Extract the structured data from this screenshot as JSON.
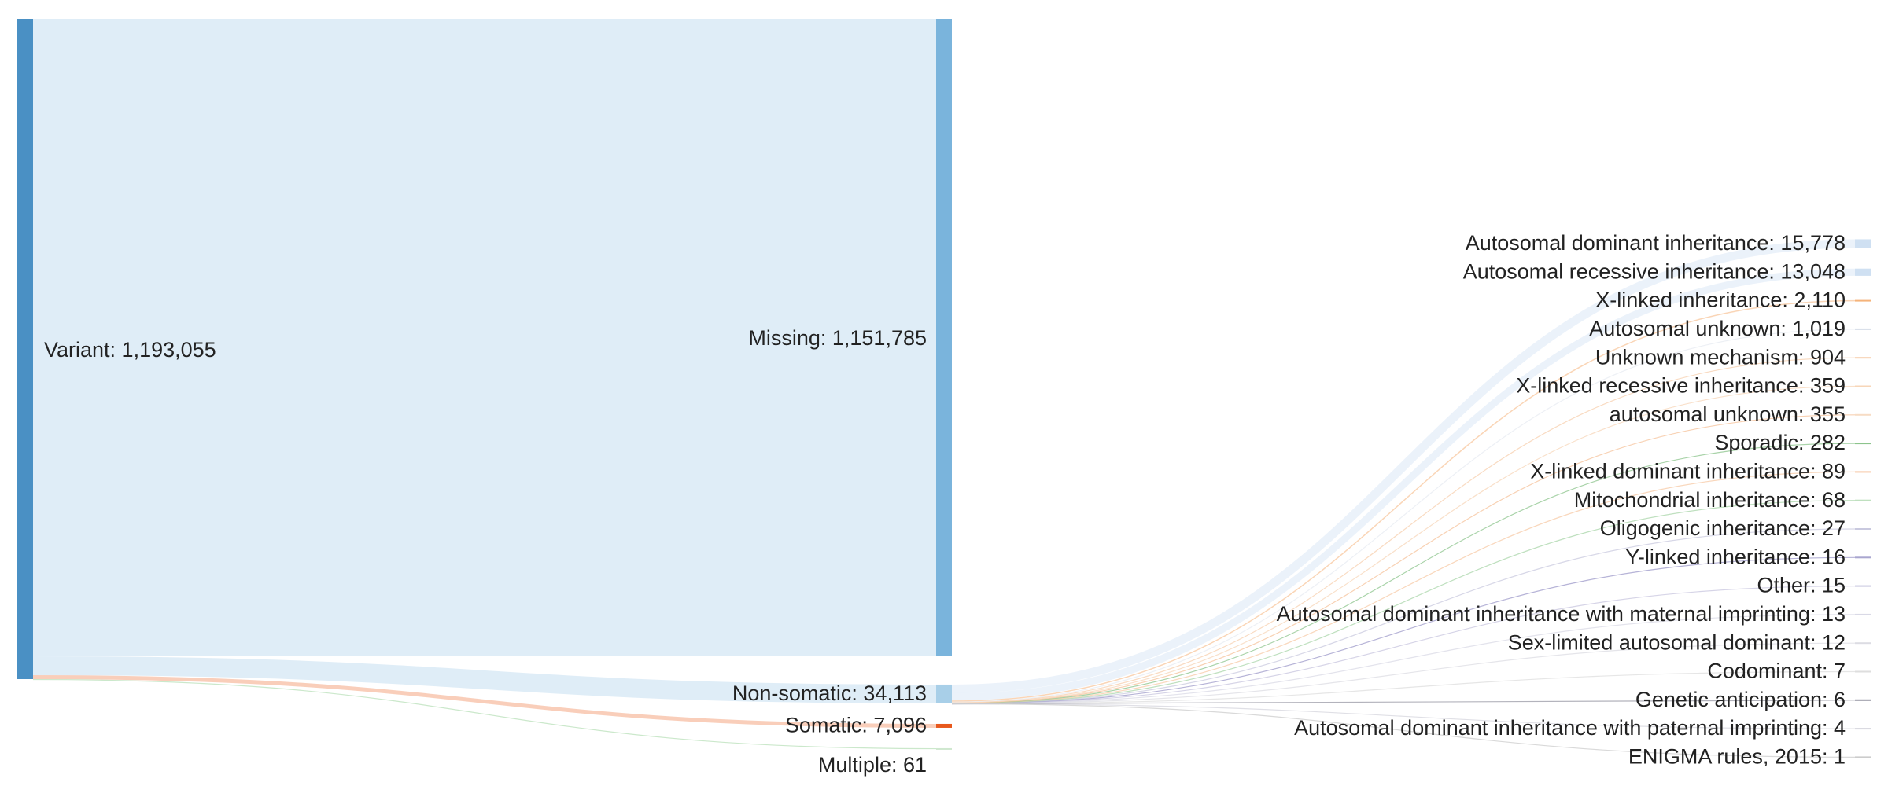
{
  "chart_data": {
    "type": "sankey",
    "title": "",
    "nodes": [
      {
        "id": "variant",
        "label": "Variant",
        "value": 1193055,
        "value_text": "1,193,055",
        "column": 0,
        "color": "#4a90c4"
      },
      {
        "id": "missing",
        "label": "Missing",
        "value": 1151785,
        "value_text": "1,151,785",
        "column": 1,
        "color": "#7ab4dc"
      },
      {
        "id": "nonsomatic",
        "label": "Non-somatic",
        "value": 34113,
        "value_text": "34,113",
        "column": 1,
        "color": "#a8cfe8"
      },
      {
        "id": "somatic",
        "label": "Somatic",
        "value": 7096,
        "value_text": "7,096",
        "column": 1,
        "color": "#e8581c"
      },
      {
        "id": "multiple",
        "label": "Multiple",
        "value": 61,
        "value_text": "61",
        "column": 1,
        "color": "#cfe8cf"
      },
      {
        "id": "ad",
        "label": "Autosomal dominant inheritance",
        "value": 15778,
        "value_text": "15,778",
        "column": 2,
        "color": "#cfe0f2"
      },
      {
        "id": "ar",
        "label": "Autosomal recessive inheritance",
        "value": 13048,
        "value_text": "13,048",
        "column": 2,
        "color": "#cfe0f2"
      },
      {
        "id": "xl",
        "label": "X-linked inheritance",
        "value": 2110,
        "value_text": "2,110",
        "column": 2,
        "color": "#f5b37a"
      },
      {
        "id": "au",
        "label": "Autosomal unknown",
        "value": 1019,
        "value_text": "1,019",
        "column": 2,
        "color": "#d6dde8"
      },
      {
        "id": "um",
        "label": "Unknown mechanism",
        "value": 904,
        "value_text": "904",
        "column": 2,
        "color": "#f7cfae"
      },
      {
        "id": "xlr",
        "label": "X-linked recessive inheritance",
        "value": 359,
        "value_text": "359",
        "column": 2,
        "color": "#f7d6b8"
      },
      {
        "id": "au2",
        "label": "autosomal unknown",
        "value": 355,
        "value_text": "355",
        "column": 2,
        "color": "#f7dcc4"
      },
      {
        "id": "sp",
        "label": "Sporadic",
        "value": 282,
        "value_text": "282",
        "column": 2,
        "color": "#8cc48c"
      },
      {
        "id": "xld",
        "label": "X-linked dominant inheritance",
        "value": 89,
        "value_text": "89",
        "column": 2,
        "color": "#f7c9a6"
      },
      {
        "id": "mi",
        "label": "Mitochondrial inheritance",
        "value": 68,
        "value_text": "68",
        "column": 2,
        "color": "#bfe0bf"
      },
      {
        "id": "og",
        "label": "Oligogenic inheritance",
        "value": 27,
        "value_text": "27",
        "column": 2,
        "color": "#c9c9df"
      },
      {
        "id": "yl",
        "label": "Y-linked inheritance",
        "value": 16,
        "value_text": "16",
        "column": 2,
        "color": "#a9a6cf"
      },
      {
        "id": "ot",
        "label": "Other",
        "value": 15,
        "value_text": "15",
        "column": 2,
        "color": "#c8c6df"
      },
      {
        "id": "admi",
        "label": "Autosomal dominant inheritance with maternal imprinting",
        "value": 13,
        "value_text": "13",
        "column": 2,
        "color": "#d9d9e6"
      },
      {
        "id": "slad",
        "label": "Sex-limited autosomal dominant",
        "value": 12,
        "value_text": "12",
        "column": 2,
        "color": "#dcdce3"
      },
      {
        "id": "co",
        "label": "Codominant",
        "value": 7,
        "value_text": "7",
        "column": 2,
        "color": "#dedede"
      },
      {
        "id": "ga",
        "label": "Genetic anticipation",
        "value": 6,
        "value_text": "6",
        "column": 2,
        "color": "#9a9aa6"
      },
      {
        "id": "adpi",
        "label": "Autosomal dominant inheritance with paternal imprinting",
        "value": 4,
        "value_text": "4",
        "column": 2,
        "color": "#d6d6de"
      },
      {
        "id": "enig",
        "label": "ENIGMA rules, 2015",
        "value": 1,
        "value_text": "1",
        "column": 2,
        "color": "#cccccc"
      }
    ],
    "links": [
      {
        "source": "variant",
        "target": "missing",
        "value": 1151785,
        "color": "#c4dff0"
      },
      {
        "source": "variant",
        "target": "nonsomatic",
        "value": 34113,
        "color": "#c4dff0"
      },
      {
        "source": "variant",
        "target": "somatic",
        "value": 7096,
        "color": "#f4a582"
      },
      {
        "source": "variant",
        "target": "multiple",
        "value": 61,
        "color": "#b9e0b9"
      },
      {
        "source": "nonsomatic",
        "target": "ad",
        "value": 15778,
        "color": "#dbe8f5"
      },
      {
        "source": "nonsomatic",
        "target": "ar",
        "value": 13048,
        "color": "#dbe8f5"
      },
      {
        "source": "nonsomatic",
        "target": "xl",
        "value": 2110,
        "color": "#f5b37a"
      },
      {
        "source": "nonsomatic",
        "target": "au",
        "value": 1019,
        "color": "#dfe4ec"
      },
      {
        "source": "nonsomatic",
        "target": "um",
        "value": 904,
        "color": "#f7cfae"
      },
      {
        "source": "nonsomatic",
        "target": "xlr",
        "value": 359,
        "color": "#f7d6b8"
      },
      {
        "source": "nonsomatic",
        "target": "au2",
        "value": 355,
        "color": "#f5c29a"
      },
      {
        "source": "nonsomatic",
        "target": "sp",
        "value": 282,
        "color": "#8cc48c"
      },
      {
        "source": "nonsomatic",
        "target": "xld",
        "value": 89,
        "color": "#f7c9a6"
      },
      {
        "source": "nonsomatic",
        "target": "mi",
        "value": 68,
        "color": "#a9d6a9"
      },
      {
        "source": "nonsomatic",
        "target": "og",
        "value": 27,
        "color": "#c9c9df"
      },
      {
        "source": "nonsomatic",
        "target": "yl",
        "value": 16,
        "color": "#9d99c9"
      },
      {
        "source": "nonsomatic",
        "target": "ot",
        "value": 15,
        "color": "#c8c6df"
      },
      {
        "source": "nonsomatic",
        "target": "admi",
        "value": 13,
        "color": "#d9d9e6"
      },
      {
        "source": "nonsomatic",
        "target": "slad",
        "value": 12,
        "color": "#dcdce3"
      },
      {
        "source": "nonsomatic",
        "target": "co",
        "value": 7,
        "color": "#dedede"
      },
      {
        "source": "nonsomatic",
        "target": "ga",
        "value": 6,
        "color": "#9a9aa6"
      },
      {
        "source": "nonsomatic",
        "target": "adpi",
        "value": 4,
        "color": "#d6d6de"
      },
      {
        "source": "nonsomatic",
        "target": "enig",
        "value": 1,
        "color": "#cccccc"
      }
    ]
  }
}
